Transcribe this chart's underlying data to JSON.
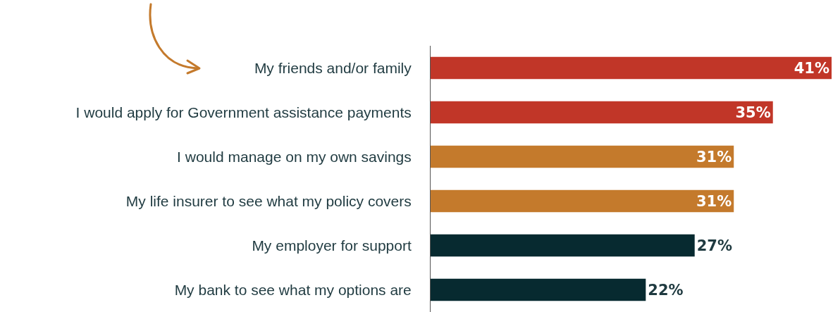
{
  "chart_data": {
    "type": "bar",
    "orientation": "horizontal",
    "categories": [
      "My friends and/or family",
      "I would apply for Government assistance payments",
      "I would manage on my own savings",
      "My life insurer to see what my policy covers",
      "My employer for support",
      "My bank to see what my options are"
    ],
    "values": [
      41,
      35,
      31,
      31,
      27,
      22
    ],
    "colors": [
      "#c13628",
      "#c13628",
      "#c47a2c",
      "#c47a2c",
      "#072a30",
      "#072a30"
    ],
    "value_labels": [
      "41%",
      "35%",
      "31%",
      "31%",
      "27%",
      "22%"
    ],
    "xlim": [
      0,
      41
    ],
    "tick_labels": "y"
  }
}
